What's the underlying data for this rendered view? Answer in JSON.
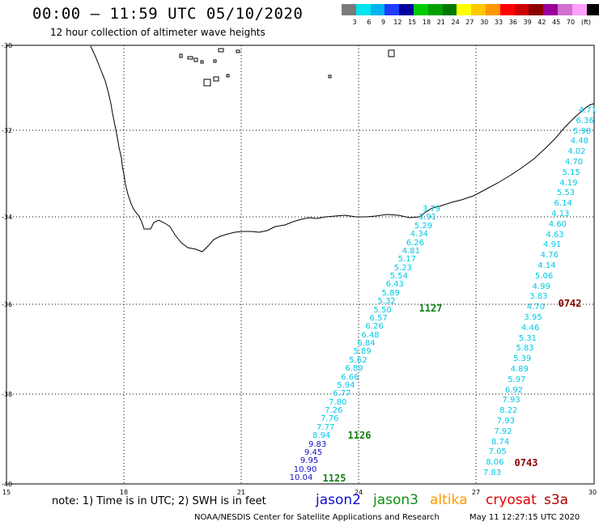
{
  "title": "00:00 – 11:59 UTC 05/10/2020",
  "subtitle": "12 hour collection of altimeter wave heights",
  "colorbar": {
    "colors": [
      "#7a7a7a",
      "#00e5ee",
      "#00b2ee",
      "#1e3cff",
      "#0000a0",
      "#00cd00",
      "#00a000",
      "#007800",
      "#ffff00",
      "#ffc800",
      "#ff9600",
      "#ff0000",
      "#cd0000",
      "#8b0000",
      "#9b009b",
      "#d070d0",
      "#ffa0ff",
      "#000000"
    ],
    "labels": [
      "3",
      "6",
      "9",
      "12",
      "15",
      "18",
      "21",
      "24",
      "27",
      "30",
      "33",
      "36",
      "39",
      "42",
      "45",
      "70"
    ],
    "unit": "(ft)"
  },
  "axes": {
    "lat_labels": [
      "-30",
      "-32",
      "-34",
      "-36",
      "-38",
      "-40"
    ],
    "lon_labels": [
      "15",
      "18",
      "21",
      "24",
      "27",
      "30"
    ]
  },
  "note": "note: 1) Time is in UTC; 2) SWH is in feet",
  "satellites": [
    {
      "name": "jason2",
      "color": "#1010d0"
    },
    {
      "name": "jason3",
      "color": "#109010"
    },
    {
      "name": "altika",
      "color": "#ff9900"
    },
    {
      "name": "cryosat",
      "color": "#e00000"
    },
    {
      "name": "s3a",
      "color": "#b00000"
    }
  ],
  "credit": "NOAA/NESDIS Center for Satellite Applications and Research",
  "stamp": "May 11 12:27:15 UTC 2020",
  "tracks": {
    "track_a": [
      "3.79",
      "3.91",
      "5.29",
      "4.34",
      "6.26",
      "4.81",
      "5.17",
      "5.23",
      "5.54",
      "6.43",
      "5.89",
      "5.32",
      "5.50",
      "6.57",
      "6.26",
      "6.48",
      "6.84",
      "5.89",
      "5.62",
      "6.89",
      "6.66",
      "5.94",
      "6.77",
      "7.80",
      "7.26",
      "7.76",
      "7.77",
      "8.94",
      "9.83",
      "9.45",
      "9.95",
      "10.90",
      "10.04"
    ],
    "track_a_colors": [
      "c",
      "c",
      "c",
      "c",
      "c",
      "c",
      "c",
      "c",
      "c",
      "c",
      "c",
      "c",
      "c",
      "c",
      "c",
      "c",
      "c",
      "c",
      "c",
      "c",
      "c",
      "c",
      "c",
      "c",
      "c",
      "c",
      "c",
      "c",
      "b",
      "b",
      "b",
      "b",
      "b"
    ],
    "track_a_times": [
      "1127",
      "1126",
      "1125"
    ],
    "track_b": [
      "4.71",
      "6.36",
      "5.98",
      "4.48",
      "4.02",
      "4.70",
      "5.15",
      "4.19",
      "5.53",
      "6.14",
      "4.13",
      "4.60",
      "4.63",
      "4.91",
      "4.76",
      "4.14",
      "5.06",
      "4.99",
      "3.83",
      "4.70",
      "3.95",
      "4.46",
      "5.31",
      "5.83",
      "5.39",
      "4.89",
      "5.97",
      "6.92",
      "7.93",
      "8.22",
      "7.93",
      "7.92",
      "8.74",
      "7.05",
      "8.06",
      "7.83"
    ],
    "track_b_times": [
      "0742",
      "0743"
    ]
  }
}
